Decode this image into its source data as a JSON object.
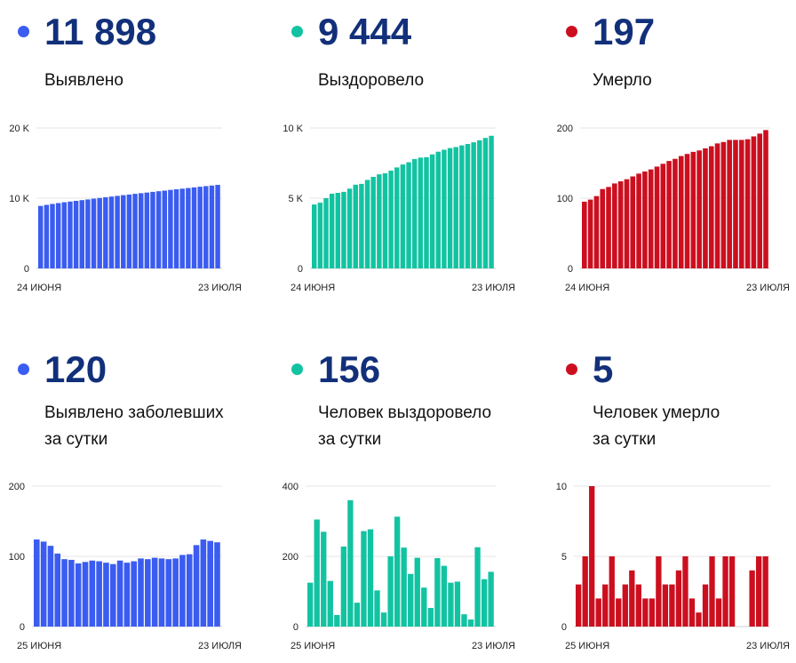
{
  "panels": [
    {
      "id": "p1",
      "color": "#3b5cf0",
      "value": "11 898",
      "label": [
        "Выявлено"
      ],
      "chart_data": {
        "type": "bar",
        "ylim": [
          0,
          20000
        ],
        "yticks": [
          "0",
          "10 K",
          "20 K"
        ],
        "ytick_values": [
          0,
          10000,
          20000
        ],
        "xlabels": [
          "24 июня",
          "23 июля"
        ],
        "values": [
          8900,
          9050,
          9180,
          9300,
          9420,
          9520,
          9620,
          9720,
          9820,
          9930,
          10030,
          10130,
          10230,
          10330,
          10430,
          10520,
          10620,
          10710,
          10800,
          10900,
          10990,
          11080,
          11180,
          11270,
          11360,
          11450,
          11540,
          11630,
          11720,
          11800,
          11898
        ]
      }
    },
    {
      "id": "p2",
      "color": "#12c3a2",
      "value": "9 444",
      "label": [
        "Выздоровело"
      ],
      "chart_data": {
        "type": "bar",
        "ylim": [
          0,
          10000
        ],
        "yticks": [
          "0",
          "5 K",
          "10 K"
        ],
        "ytick_values": [
          0,
          5000,
          10000
        ],
        "xlabels": [
          "24 июня",
          "23 июля"
        ],
        "values": [
          4550,
          4680,
          5000,
          5320,
          5380,
          5450,
          5680,
          5960,
          6020,
          6300,
          6520,
          6700,
          6770,
          6960,
          7190,
          7400,
          7560,
          7790,
          7890,
          7920,
          8120,
          8310,
          8450,
          8570,
          8640,
          8760,
          8860,
          8980,
          9120,
          9290,
          9444
        ]
      }
    },
    {
      "id": "p3",
      "color": "#cc0f1f",
      "value": "197",
      "label": [
        "Умерло"
      ],
      "chart_data": {
        "type": "bar",
        "ylim": [
          0,
          200
        ],
        "yticks": [
          "0",
          "100",
          "200"
        ],
        "ytick_values": [
          0,
          100,
          200
        ],
        "xlabels": [
          "24 июня",
          "23 июля"
        ],
        "values": [
          95,
          98,
          103,
          113,
          116,
          121,
          124,
          127,
          131,
          135,
          138,
          141,
          145,
          149,
          153,
          156,
          160,
          163,
          166,
          168,
          171,
          174,
          178,
          180,
          183,
          183,
          183,
          184,
          188,
          192,
          197
        ]
      }
    },
    {
      "id": "p4",
      "color": "#3b5cf0",
      "value": "120",
      "label": [
        "Выявлено заболевших",
        "за сутки"
      ],
      "chart_data": {
        "type": "bar",
        "ylim": [
          0,
          200
        ],
        "yticks": [
          "0",
          "100",
          "200"
        ],
        "ytick_values": [
          0,
          100,
          200
        ],
        "xlabels": [
          "25 июня",
          "23 июля"
        ],
        "values": [
          124,
          121,
          115,
          104,
          96,
          95,
          90,
          92,
          94,
          93,
          91,
          89,
          94,
          91,
          93,
          97,
          96,
          98,
          97,
          96,
          97,
          102,
          103,
          116,
          124,
          122,
          120
        ]
      }
    },
    {
      "id": "p5",
      "color": "#12c3a2",
      "value": "156",
      "label": [
        "Человек выздоровело",
        "за сутки"
      ],
      "chart_data": {
        "type": "bar",
        "ylim": [
          0,
          400
        ],
        "yticks": [
          "0",
          "200",
          "400"
        ],
        "ytick_values": [
          0,
          200,
          400
        ],
        "xlabels": [
          "25 июня",
          "23 июля"
        ],
        "values": [
          125,
          305,
          270,
          130,
          33,
          228,
          360,
          68,
          272,
          277,
          103,
          40,
          200,
          313,
          225,
          150,
          196,
          111,
          53,
          195,
          173,
          125,
          128,
          35,
          20,
          226,
          135,
          156
        ]
      }
    },
    {
      "id": "p6",
      "color": "#cc0f1f",
      "value": "5",
      "label": [
        "Человек умерло",
        "за сутки"
      ],
      "chart_data": {
        "type": "bar",
        "ylim": [
          0,
          10
        ],
        "yticks": [
          "0",
          "5",
          "10"
        ],
        "ytick_values": [
          0,
          5,
          10
        ],
        "xlabels": [
          "25 июня",
          "23 июля"
        ],
        "values": [
          3,
          5,
          10,
          2,
          3,
          5,
          2,
          3,
          4,
          3,
          2,
          2,
          5,
          3,
          3,
          4,
          5,
          2,
          1,
          3,
          5,
          2,
          5,
          5,
          0,
          0,
          4,
          5,
          5
        ]
      }
    }
  ]
}
